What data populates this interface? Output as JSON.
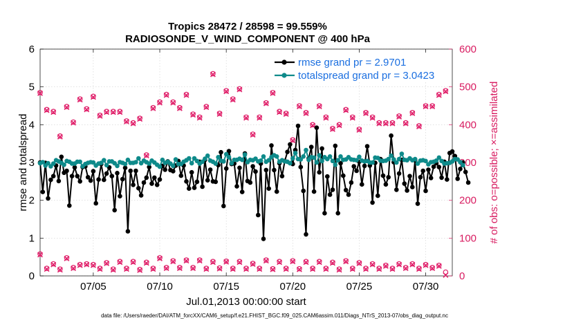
{
  "chart_data": {
    "type": "line",
    "title": "Tropics 28472 / 28598 = 99.559%",
    "subtitle": "RADIOSONDE_V_WIND_COMPONENT @ 400 hPa",
    "xlabel": "Jul.01,2013 00:00:00 start",
    "ylabel_left": "rmse and totalspread",
    "ylabel_right": "# of obs: o=possible; ×=assimilated",
    "footnote": "data file: /Users/raeder/DAI/ATM_forcXX/CAM6_setup/f.e21.FHIST_BGC.f09_025.CAM6assim.011/Diags_NTrS_2013-07/obs_diag_output.nc",
    "xlim": [
      1.0,
      32.0
    ],
    "ylim_left": [
      0,
      6
    ],
    "ylim_right": [
      0,
      600
    ],
    "x_ticks": [
      5,
      10,
      15,
      20,
      25,
      30
    ],
    "x_tick_labels": [
      "07/05",
      "07/10",
      "07/15",
      "07/20",
      "07/25",
      "07/30"
    ],
    "y_left_ticks": [
      "0",
      "1",
      "2",
      "3",
      "4",
      "5",
      "6"
    ],
    "y_right_ticks": [
      "0",
      "100",
      "200",
      "300",
      "400",
      "500",
      "600"
    ],
    "colors": {
      "rmse": "#000000",
      "spread": "#0e8a8a",
      "obs": "#e0206a",
      "legend_text": "#1b6fe0",
      "right_axis": "#d81b60"
    },
    "series": [
      {
        "name": "rmse grand pr = 2.9701",
        "color": "#000000",
        "values": [
          3.0,
          2.22,
          2.99,
          2.05,
          2.54,
          2.64,
          2.92,
          2.51,
          3.15,
          2.73,
          2.78,
          1.86,
          2.64,
          2.87,
          2.64,
          2.5,
          2.88,
          2.9,
          2.61,
          2.52,
          2.77,
          1.92,
          2.55,
          2.96,
          2.54,
          2.71,
          2.87,
          2.64,
          1.74,
          2.72,
          2.11,
          2.56,
          2.86,
          1.18,
          2.78,
          2.41,
          2.78,
          2.32,
          2.13,
          2.47,
          2.6,
          2.88,
          2.44,
          2.6,
          2.41,
          2.55,
          2.91,
          2.81,
          3.03,
          2.8,
          2.77,
          2.92,
          3.04,
          2.65,
          2.92,
          2.5,
          2.31,
          2.74,
          2.33,
          2.49,
          3.02,
          2.36,
          3.07,
          2.53,
          2.81,
          2.5,
          2.49,
          2.93,
          3.27,
          1.85,
          2.84,
          3.3,
          2.96,
          2.97,
          2.37,
          2.86,
          2.22,
          3.24,
          2.51,
          2.47,
          2.9,
          2.76,
          1.61,
          2.97,
          0.98,
          2.8,
          2.31,
          3.45,
          2.8,
          2.23,
          2.98,
          2.64,
          3.04,
          3.28,
          3.48,
          2.96,
          3.33,
          3.97,
          2.88,
          2.25,
          1.1,
          3.11,
          3.41,
          2.23,
          3.92,
          2.74,
          3.37,
          1.66,
          2.63,
          2.15,
          2.28,
          3.44,
          1.66,
          2.98,
          2.65,
          2.27,
          2.15,
          2.47,
          2.9,
          2.78,
          3.02,
          2.42,
          2.91,
          3.43,
          2.92,
          1.94,
          2.99,
          2.12,
          3.09,
          2.65,
          2.42,
          2.61,
          3.71,
          3.01,
          2.28,
          2.71,
          3.07,
          2.44,
          2.26,
          2.64,
          2.35,
          3.06,
          1.91,
          2.61,
          2.78,
          2.25,
          2.81,
          2.59,
          2.89,
          2.98,
          2.88,
          2.6,
          3.02,
          2.55,
          3.25,
          3.29,
          3.17,
          2.57,
          2.83,
          3.0,
          2.75,
          2.47
        ],
        "x_start": 1.0,
        "x_step": 0.2
      },
      {
        "name": "totalspread grand pr = 3.0423",
        "color": "#0e8a8a",
        "values": [
          2.98,
          3.01,
          2.92,
          2.98,
          2.9,
          2.97,
          3.06,
          3.03,
          2.99,
          2.94,
          3.04,
          3.02,
          2.97,
          2.97,
          3.02,
          3.02,
          2.9,
          2.96,
          2.99,
          3.01,
          3.0,
          2.92,
          2.97,
          2.99,
          3.06,
          2.93,
          3.03,
          3.03,
          2.98,
          2.91,
          3.01,
          2.99,
          2.96,
          3.07,
          2.99,
          2.99,
          3.01,
          3.11,
          2.98,
          3.05,
          3.01,
          2.97,
          3.05,
          3.0,
          2.94,
          2.89,
          3.07,
          2.99,
          3.02,
          2.97,
          2.91,
          3.08,
          2.96,
          2.96,
          3.02,
          3.06,
          3.11,
          2.98,
          3.11,
          3.04,
          2.97,
          3.02,
          3.1,
          3.18,
          3.05,
          3.02,
          2.97,
          3.14,
          3.05,
          3.03,
          3.22,
          3.14,
          2.98,
          3.07,
          3.07,
          3.1,
          3.07,
          3.21,
          3.01,
          3.07,
          3.06,
          3.1,
          3.03,
          3.05,
          3.16,
          3.02,
          3.06,
          3.14,
          3.19,
          3.16,
          3.02,
          3.06,
          3.03,
          3.02,
          2.98,
          3.11,
          3.25,
          3.09,
          3.08,
          3.16,
          3.33,
          3.07,
          3.14,
          3.13,
          3.0,
          3.19,
          3.04,
          3.14,
          3.09,
          3.16,
          3.04,
          2.94,
          3.06,
          3.16,
          3.07,
          3.08,
          3.14,
          3.08,
          3.07,
          3.06,
          3.15,
          3.05,
          3.03,
          3.04,
          3.0,
          3.0,
          3.13,
          3.12,
          3.05,
          3.04,
          3.05,
          3.09,
          3.18,
          3.08,
          3.0,
          3.09,
          3.23,
          3.07,
          3.06,
          3.11,
          3.06,
          3.09,
          2.97,
          3.05,
          3.06,
          3.04,
          2.95,
          3.01,
          3.02,
          3.05,
          3.13,
          3.04,
          2.97,
          2.98,
          2.99,
          3.03,
          3.09,
          3.08,
          3.01,
          2.93
        ],
        "x_start": 1.0,
        "x_step": 0.2
      },
      {
        "name": "# of obs upper (o=possible, ×=assimilated)",
        "color": "#e0206a",
        "x": [
          1.0,
          1.5,
          2.0,
          2.5,
          3.0,
          3.5,
          4.0,
          4.5,
          5.0,
          5.5,
          6.0,
          6.5,
          7.0,
          7.5,
          8.0,
          8.5,
          9.0,
          9.5,
          10.0,
          10.5,
          11.0,
          11.5,
          12.0,
          12.5,
          13.0,
          13.5,
          14.0,
          14.5,
          15.0,
          15.5,
          16.0,
          16.5,
          17.0,
          17.5,
          18.0,
          18.5,
          19.0,
          19.5,
          20.0,
          20.5,
          21.0,
          21.5,
          22.0,
          22.5,
          23.0,
          23.5,
          24.0,
          24.5,
          25.0,
          25.5,
          26.0,
          26.5,
          27.0,
          27.5,
          28.0,
          28.5,
          29.0,
          29.5,
          30.0,
          30.5,
          31.0,
          31.5
        ],
        "possible": [
          485,
          440,
          435,
          370,
          448,
          407,
          468,
          442,
          475,
          425,
          435,
          435,
          435,
          410,
          405,
          417,
          320,
          445,
          460,
          480,
          460,
          445,
          480,
          428,
          420,
          448,
          535,
          430,
          490,
          468,
          495,
          420,
          375,
          420,
          458,
          485,
          435,
          430,
          360,
          450,
          432,
          400,
          450,
          420,
          390,
          400,
          440,
          420,
          388,
          432,
          420,
          405,
          405,
          405,
          423,
          405,
          432,
          397,
          450,
          450,
          480,
          490
        ],
        "assimilated": [
          483,
          438,
          433,
          368,
          446,
          405,
          466,
          440,
          473,
          423,
          433,
          433,
          433,
          408,
          403,
          415,
          318,
          443,
          458,
          478,
          458,
          443,
          478,
          426,
          418,
          446,
          533,
          428,
          488,
          466,
          493,
          418,
          373,
          418,
          456,
          483,
          433,
          428,
          358,
          448,
          430,
          398,
          448,
          418,
          388,
          398,
          438,
          418,
          386,
          430,
          418,
          403,
          403,
          403,
          421,
          403,
          430,
          395,
          448,
          448,
          478,
          488
        ]
      },
      {
        "name": "# of obs lower (o=possible, ×=assimilated)",
        "color": "#e0206a",
        "x": [
          1.0,
          1.5,
          2.0,
          2.5,
          3.0,
          3.5,
          4.0,
          4.5,
          5.0,
          5.5,
          6.0,
          6.5,
          7.0,
          7.5,
          8.0,
          8.5,
          9.0,
          9.5,
          10.0,
          10.5,
          11.0,
          11.5,
          12.0,
          12.5,
          13.0,
          13.5,
          14.0,
          14.5,
          15.0,
          15.5,
          16.0,
          16.5,
          17.0,
          17.5,
          18.0,
          18.5,
          19.0,
          19.5,
          20.0,
          20.5,
          21.0,
          21.5,
          22.0,
          22.5,
          23.0,
          23.5,
          24.0,
          24.5,
          25.0,
          25.5,
          26.0,
          26.5,
          27.0,
          27.5,
          28.0,
          28.5,
          29.0,
          29.5,
          30.0,
          30.5,
          31.0,
          31.5
        ],
        "possible": [
          58,
          20,
          32,
          18,
          48,
          22,
          30,
          32,
          30,
          20,
          35,
          18,
          38,
          20,
          38,
          17,
          36,
          20,
          48,
          22,
          40,
          22,
          42,
          22,
          42,
          20,
          38,
          21,
          39,
          20,
          38,
          20,
          33,
          20,
          42,
          19,
          38,
          20,
          40,
          19,
          38,
          20,
          38,
          20,
          36,
          18,
          40,
          20,
          35,
          20,
          32,
          20,
          28,
          20,
          32,
          22,
          32,
          20,
          30,
          22,
          28,
          10
        ],
        "assimilated": [
          56,
          18,
          30,
          16,
          46,
          20,
          28,
          30,
          28,
          18,
          33,
          16,
          36,
          18,
          36,
          15,
          34,
          18,
          46,
          20,
          38,
          20,
          40,
          20,
          40,
          18,
          36,
          19,
          37,
          18,
          36,
          18,
          31,
          18,
          40,
          17,
          36,
          18,
          38,
          17,
          36,
          18,
          36,
          18,
          34,
          16,
          38,
          18,
          33,
          18,
          30,
          18,
          26,
          18,
          30,
          20,
          30,
          18,
          28,
          20,
          26,
          2
        ]
      }
    ]
  }
}
